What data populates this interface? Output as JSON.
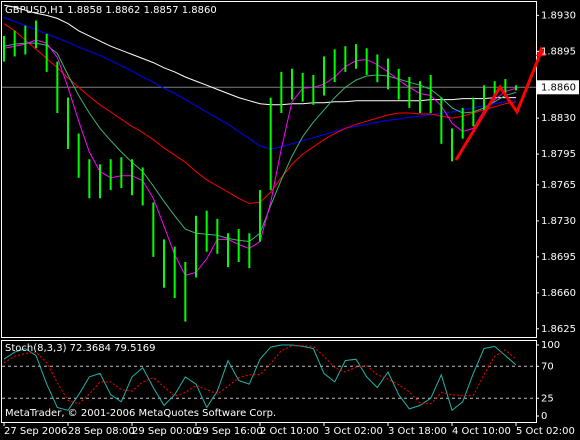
{
  "chart_data": [
    {
      "type": "ohlc",
      "title": "GBPUSD,H1  1.8858 1.8862 1.8857 1.8860",
      "annotation": "MetaTrader, © 2001-2006 MetaQuotes Software Corp.",
      "categories": [
        "27 Sep 2006",
        null,
        null,
        null,
        null,
        null,
        "28 Sep 08:00",
        null,
        null,
        null,
        null,
        null,
        "29 Sep 00:00",
        null,
        null,
        null,
        null,
        null,
        "29 Sep 16:00",
        null,
        null,
        null,
        null,
        null,
        "2 Oct 10:00",
        null,
        null,
        null,
        null,
        null,
        "3 Oct 02:00",
        null,
        null,
        null,
        null,
        null,
        "3 Oct 18:00",
        null,
        null,
        null,
        null,
        null,
        "4 Oct 10:00",
        null,
        null,
        null,
        null,
        null,
        "5 Oct 02:00"
      ],
      "high": [
        1.891,
        1.8915,
        1.892,
        1.8925,
        1.8912,
        1.8885,
        1.885,
        1.8815,
        1.879,
        1.8785,
        1.879,
        1.8792,
        1.879,
        1.8782,
        1.8748,
        1.8712,
        1.8705,
        1.869,
        1.8735,
        1.874,
        1.8732,
        1.8718,
        1.8722,
        1.8718,
        1.876,
        1.885,
        1.8875,
        1.8878,
        1.8874,
        1.8872,
        1.889,
        1.8897,
        1.89,
        1.8902,
        1.8898,
        1.8892,
        1.8888,
        1.8878,
        1.887,
        1.8866,
        1.8872,
        1.885,
        1.882,
        1.884,
        1.885,
        1.8862,
        1.8866,
        1.8868,
        1.8862
      ],
      "low": [
        1.8885,
        1.889,
        1.8892,
        1.8898,
        1.8875,
        1.8835,
        1.88,
        1.8772,
        1.8752,
        1.8752,
        1.876,
        1.8762,
        1.8755,
        1.8745,
        1.8695,
        1.8665,
        1.8655,
        1.8632,
        1.8675,
        1.87,
        1.8698,
        1.8685,
        1.869,
        1.8684,
        1.871,
        1.876,
        1.8835,
        1.8848,
        1.8846,
        1.8843,
        1.8852,
        1.8865,
        1.8875,
        1.8878,
        1.8872,
        1.8865,
        1.8858,
        1.8848,
        1.884,
        1.8835,
        1.8835,
        1.8805,
        1.8788,
        1.881,
        1.8822,
        1.8838,
        1.885,
        1.8852,
        1.8857
      ],
      "color": "#00ff00",
      "series": [
        {
          "color": "#ffffff",
          "values": [
            1.894,
            1.8938,
            1.8935,
            1.8932,
            1.893,
            1.8927,
            1.8922,
            1.8915,
            1.891,
            1.8905,
            1.89,
            1.8896,
            1.8892,
            1.8888,
            1.8884,
            1.8879,
            1.8875,
            1.887,
            1.8866,
            1.8862,
            1.8858,
            1.8854,
            1.885,
            1.8847,
            1.8844,
            1.8843,
            1.8843,
            1.8844,
            1.8844,
            1.8845,
            1.8845,
            1.8846,
            1.8846,
            1.8847,
            1.8847,
            1.8847,
            1.8847,
            1.8847,
            1.8847,
            1.8847,
            1.8848,
            1.8848,
            1.8848,
            1.8849,
            1.8849,
            1.8849,
            1.885,
            1.885,
            1.885
          ]
        },
        {
          "color": "#0000ff",
          "values": [
            1.8928,
            1.8924,
            1.892,
            1.8916,
            1.8912,
            1.8908,
            1.8904,
            1.8899,
            1.8895,
            1.8891,
            1.8886,
            1.8881,
            1.8876,
            1.887,
            1.8865,
            1.8859,
            1.8854,
            1.8848,
            1.8842,
            1.8836,
            1.883,
            1.8824,
            1.8817,
            1.881,
            1.8803,
            1.88,
            1.8802,
            1.8805,
            1.8808,
            1.8811,
            1.8814,
            1.8817,
            1.882,
            1.8822,
            1.8824,
            1.8826,
            1.8828,
            1.8829,
            1.8831,
            1.8832,
            1.8833,
            1.8835,
            1.8836,
            1.8838,
            1.884,
            1.8842,
            1.8844,
            1.8846,
            1.8848
          ]
        },
        {
          "color": "#ff0000",
          "values": [
            1.8922,
            1.8915,
            1.8906,
            1.8897,
            1.8888,
            1.8879,
            1.8869,
            1.886,
            1.8851,
            1.8843,
            1.8836,
            1.8829,
            1.8822,
            1.8816,
            1.8809,
            1.8801,
            1.8794,
            1.8787,
            1.8778,
            1.877,
            1.8764,
            1.8758,
            1.8752,
            1.8747,
            1.8748,
            1.8758,
            1.8772,
            1.8785,
            1.8795,
            1.8802,
            1.8809,
            1.8815,
            1.882,
            1.8824,
            1.8827,
            1.883,
            1.8833,
            1.8835,
            1.8835,
            1.8834,
            1.8834,
            1.8832,
            1.883,
            1.8832,
            1.8835,
            1.8838,
            1.8841,
            1.8844,
            1.8846
          ]
        },
        {
          "color": "#3cb371",
          "values": [
            1.89,
            1.8902,
            1.8903,
            1.8903,
            1.8901,
            1.8893,
            1.8872,
            1.8852,
            1.8835,
            1.882,
            1.8808,
            1.8797,
            1.8787,
            1.8778,
            1.8764,
            1.8749,
            1.8735,
            1.8722,
            1.8718,
            1.8717,
            1.8716,
            1.8713,
            1.8711,
            1.871,
            1.8718,
            1.8745,
            1.877,
            1.8793,
            1.8812,
            1.8826,
            1.8838,
            1.885,
            1.886,
            1.8867,
            1.8871,
            1.8872,
            1.8871,
            1.8868,
            1.8865,
            1.8862,
            1.8858,
            1.885,
            1.884,
            1.8835,
            1.8836,
            1.884,
            1.8846,
            1.8852,
            1.8855
          ]
        },
        {
          "color": "#ff00ff",
          "values": [
            1.8898,
            1.89,
            1.8902,
            1.8906,
            1.8903,
            1.8889,
            1.886,
            1.8827,
            1.8797,
            1.8778,
            1.8772,
            1.8774,
            1.8774,
            1.8769,
            1.8752,
            1.8725,
            1.8697,
            1.8677,
            1.868,
            1.8693,
            1.8712,
            1.8712,
            1.8707,
            1.8703,
            1.871,
            1.8748,
            1.88,
            1.8846,
            1.8859,
            1.886,
            1.8863,
            1.887,
            1.888,
            1.8886,
            1.8887,
            1.8882,
            1.8875,
            1.8867,
            1.886,
            1.8854,
            1.8852,
            1.8842,
            1.8825,
            1.8817,
            1.882,
            1.8837,
            1.8848,
            1.8856,
            1.8859
          ]
        }
      ],
      "ylim": [
        1.8618,
        1.8943
      ],
      "yticks": [
        {
          "value": 1.893,
          "label": "1.8930"
        },
        {
          "value": 1.8895,
          "label": "1.8895"
        },
        {
          "value": 1.883,
          "label": "1.8830"
        },
        {
          "value": 1.8795,
          "label": "1.8795"
        },
        {
          "value": 1.8765,
          "label": "1.8765"
        },
        {
          "value": 1.873,
          "label": "1.8730"
        },
        {
          "value": 1.8695,
          "label": "1.8695"
        },
        {
          "value": 1.866,
          "label": "1.8660"
        },
        {
          "value": 1.8625,
          "label": "1.8625"
        }
      ],
      "current_price": {
        "value": 1.886,
        "label": "1.8860"
      }
    },
    {
      "type": "line",
      "title": "Stoch(8,3,3) 72.3684 79.5169",
      "series": [
        {
          "color": "#20b2aa",
          "values": [
            80,
            90,
            95,
            85,
            45,
            12,
            8,
            30,
            55,
            60,
            30,
            20,
            55,
            68,
            40,
            15,
            30,
            55,
            45,
            12,
            35,
            78,
            50,
            45,
            80,
            97,
            100,
            100,
            98,
            95,
            60,
            48,
            78,
            80,
            55,
            40,
            62,
            30,
            10,
            15,
            25,
            58,
            8,
            20,
            60,
            95,
            98,
            85,
            72
          ]
        },
        {
          "color": "#ff0000",
          "dashed": true,
          "values": [
            75,
            84,
            88,
            90,
            75,
            47,
            22,
            17,
            31,
            48,
            48,
            37,
            35,
            48,
            54,
            41,
            28,
            33,
            43,
            37,
            31,
            42,
            54,
            58,
            58,
            74,
            92,
            99,
            99,
            98,
            84,
            68,
            62,
            69,
            71,
            58,
            52,
            44,
            34,
            18,
            17,
            33,
            30,
            29,
            29,
            58,
            84,
            93,
            80
          ]
        }
      ],
      "ylim": [
        -5.6,
        105.6
      ],
      "yticks": [
        100,
        70,
        25,
        0
      ],
      "levels": [
        70,
        25
      ]
    }
  ]
}
